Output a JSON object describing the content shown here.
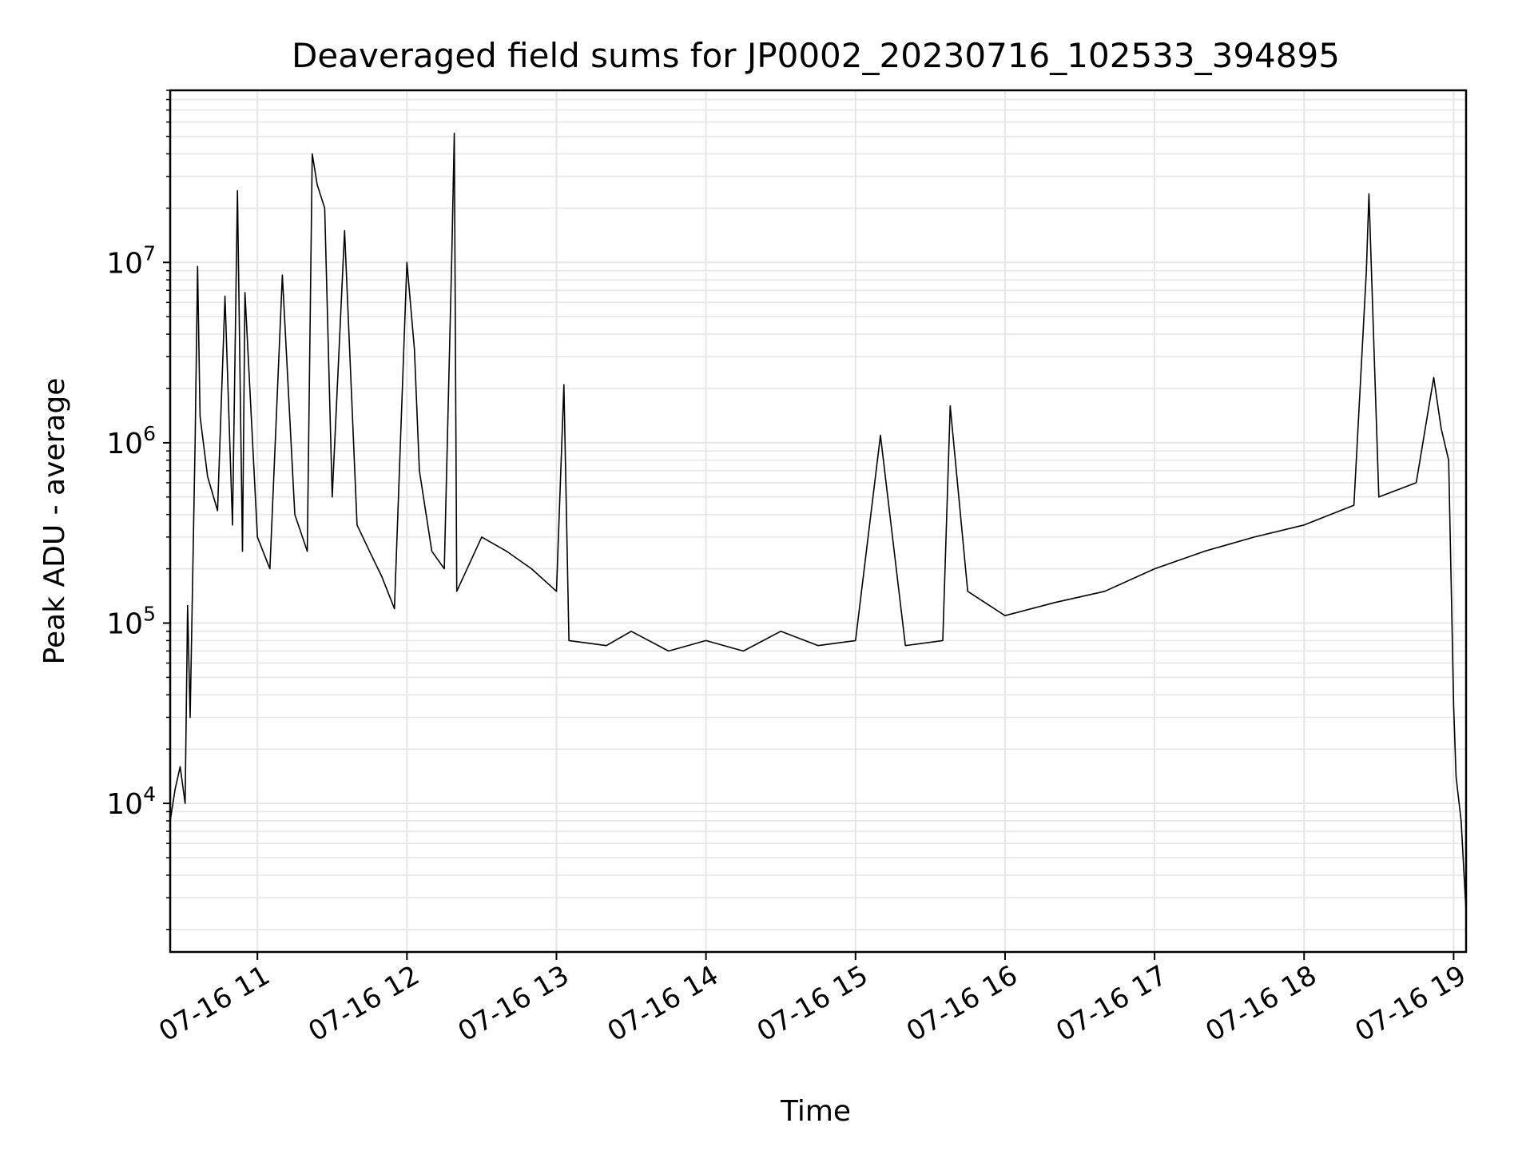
{
  "chart_data": {
    "type": "line",
    "title": "Deaveraged field sums for JP0002_20230716_102533_394895",
    "xlabel": "Time",
    "ylabel": "Peak ADU - average",
    "xlim": [
      "2023-07-16 10:25",
      "2023-07-16 19:05"
    ],
    "x_ticks": [
      {
        "t": "2023-07-16 11:00",
        "label": "07-16 11"
      },
      {
        "t": "2023-07-16 12:00",
        "label": "07-16 12"
      },
      {
        "t": "2023-07-16 13:00",
        "label": "07-16 13"
      },
      {
        "t": "2023-07-16 14:00",
        "label": "07-16 14"
      },
      {
        "t": "2023-07-16 15:00",
        "label": "07-16 15"
      },
      {
        "t": "2023-07-16 16:00",
        "label": "07-16 16"
      },
      {
        "t": "2023-07-16 17:00",
        "label": "07-16 17"
      },
      {
        "t": "2023-07-16 18:00",
        "label": "07-16 18"
      },
      {
        "t": "2023-07-16 19:00",
        "label": "07-16 19"
      }
    ],
    "yscale": "log",
    "ylim": [
      1500,
      90000000
    ],
    "y_ticks": [
      {
        "value": 10000,
        "base": "10",
        "exp": "4"
      },
      {
        "value": 100000,
        "base": "10",
        "exp": "5"
      },
      {
        "value": 1000000,
        "base": "10",
        "exp": "6"
      },
      {
        "value": 10000000,
        "base": "10",
        "exp": "7"
      }
    ],
    "grid": true,
    "line_color": "#000000",
    "grid_color": "#e6e6e6",
    "series": [
      {
        "points": [
          [
            "2023-07-16 10:25",
            8000
          ],
          [
            "2023-07-16 10:27",
            12000
          ],
          [
            "2023-07-16 10:29",
            16000
          ],
          [
            "2023-07-16 10:31",
            10000
          ],
          [
            "2023-07-16 10:32",
            125000
          ],
          [
            "2023-07-16 10:33",
            30000
          ],
          [
            "2023-07-16 10:35",
            1000000
          ],
          [
            "2023-07-16 10:36",
            9500000
          ],
          [
            "2023-07-16 10:37",
            1400000
          ],
          [
            "2023-07-16 10:40",
            650000
          ],
          [
            "2023-07-16 10:44",
            420000
          ],
          [
            "2023-07-16 10:47",
            6500000
          ],
          [
            "2023-07-16 10:50",
            350000
          ],
          [
            "2023-07-16 10:52",
            25000000
          ],
          [
            "2023-07-16 10:54",
            250000
          ],
          [
            "2023-07-16 10:55",
            6800000
          ],
          [
            "2023-07-16 11:00",
            300000
          ],
          [
            "2023-07-16 11:05",
            200000
          ],
          [
            "2023-07-16 11:10",
            8500000
          ],
          [
            "2023-07-16 11:15",
            400000
          ],
          [
            "2023-07-16 11:20",
            250000
          ],
          [
            "2023-07-16 11:22",
            40000000
          ],
          [
            "2023-07-16 11:24",
            27000000
          ],
          [
            "2023-07-16 11:27",
            20000000
          ],
          [
            "2023-07-16 11:30",
            500000
          ],
          [
            "2023-07-16 11:35",
            15000000
          ],
          [
            "2023-07-16 11:40",
            350000
          ],
          [
            "2023-07-16 11:45",
            250000
          ],
          [
            "2023-07-16 11:50",
            180000
          ],
          [
            "2023-07-16 11:55",
            120000
          ],
          [
            "2023-07-16 12:00",
            10000000
          ],
          [
            "2023-07-16 12:03",
            3300000
          ],
          [
            "2023-07-16 12:05",
            700000
          ],
          [
            "2023-07-16 12:10",
            250000
          ],
          [
            "2023-07-16 12:15",
            200000
          ],
          [
            "2023-07-16 12:18",
            11000000
          ],
          [
            "2023-07-16 12:19",
            52000000
          ],
          [
            "2023-07-16 12:20",
            150000
          ],
          [
            "2023-07-16 12:30",
            300000
          ],
          [
            "2023-07-16 12:40",
            250000
          ],
          [
            "2023-07-16 12:50",
            200000
          ],
          [
            "2023-07-16 13:00",
            150000
          ],
          [
            "2023-07-16 13:03",
            2100000
          ],
          [
            "2023-07-16 13:05",
            80000
          ],
          [
            "2023-07-16 13:20",
            75000
          ],
          [
            "2023-07-16 13:30",
            90000
          ],
          [
            "2023-07-16 13:45",
            70000
          ],
          [
            "2023-07-16 14:00",
            80000
          ],
          [
            "2023-07-16 14:15",
            70000
          ],
          [
            "2023-07-16 14:30",
            90000
          ],
          [
            "2023-07-16 14:45",
            75000
          ],
          [
            "2023-07-16 15:00",
            80000
          ],
          [
            "2023-07-16 15:10",
            1100000
          ],
          [
            "2023-07-16 15:20",
            75000
          ],
          [
            "2023-07-16 15:35",
            80000
          ],
          [
            "2023-07-16 15:38",
            1600000
          ],
          [
            "2023-07-16 15:45",
            150000
          ],
          [
            "2023-07-16 16:00",
            110000
          ],
          [
            "2023-07-16 16:20",
            130000
          ],
          [
            "2023-07-16 16:40",
            150000
          ],
          [
            "2023-07-16 17:00",
            200000
          ],
          [
            "2023-07-16 17:20",
            250000
          ],
          [
            "2023-07-16 17:40",
            300000
          ],
          [
            "2023-07-16 18:00",
            350000
          ],
          [
            "2023-07-16 18:20",
            450000
          ],
          [
            "2023-07-16 18:25",
            9000000
          ],
          [
            "2023-07-16 18:26",
            24000000
          ],
          [
            "2023-07-16 18:30",
            500000
          ],
          [
            "2023-07-16 18:45",
            600000
          ],
          [
            "2023-07-16 18:52",
            2300000
          ],
          [
            "2023-07-16 18:55",
            1200000
          ],
          [
            "2023-07-16 18:58",
            800000
          ],
          [
            "2023-07-16 19:00",
            35000
          ],
          [
            "2023-07-16 19:01",
            14000
          ],
          [
            "2023-07-16 19:03",
            8000
          ],
          [
            "2023-07-16 19:05",
            2500
          ]
        ]
      }
    ]
  }
}
